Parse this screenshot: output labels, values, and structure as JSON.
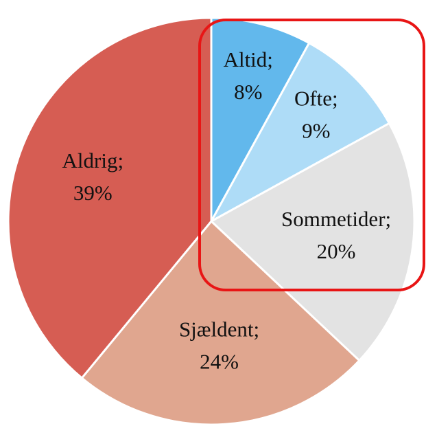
{
  "chart_data": {
    "type": "pie",
    "categories": [
      "Altid;",
      "Ofte;",
      "Sommetider;",
      "Sjældent;",
      "Aldrig;"
    ],
    "values": [
      8,
      9,
      20,
      24,
      39
    ],
    "value_labels": [
      "8%",
      "9%",
      "20%",
      "24%",
      "39%"
    ],
    "colors": [
      "#62b8ec",
      "#aedcf7",
      "#e3e3e3",
      "#e0a68f",
      "#d65d53"
    ]
  }
}
